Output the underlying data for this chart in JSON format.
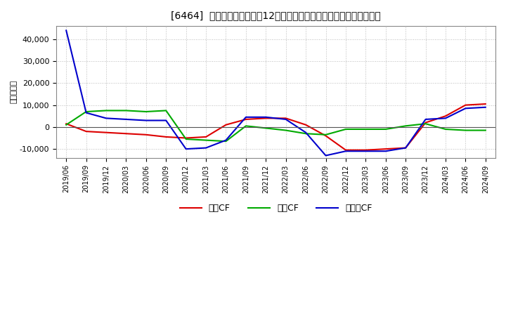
{
  "title": "[6464]  キャッシュフローの12か月移動合計の対前年同期増減額の推移",
  "ylabel": "（百万円）",
  "background_color": "#ffffff",
  "plot_bg_color": "#ffffff",
  "grid_color": "#aaaaaa",
  "x_labels": [
    "2019/06",
    "2019/09",
    "2019/12",
    "2020/03",
    "2020/06",
    "2020/09",
    "2020/12",
    "2021/03",
    "2021/06",
    "2021/09",
    "2021/12",
    "2022/03",
    "2022/06",
    "2022/09",
    "2022/12",
    "2023/03",
    "2023/06",
    "2023/09",
    "2023/12",
    "2024/03",
    "2024/06",
    "2024/09"
  ],
  "operating_cf": [
    1500,
    -2000,
    -2500,
    -3000,
    -3500,
    -4500,
    -5000,
    -4500,
    1000,
    3500,
    4000,
    4000,
    1000,
    -4000,
    -10500,
    -10500,
    -10000,
    -9500,
    2000,
    5000,
    10000,
    10500
  ],
  "investing_cf": [
    1000,
    7000,
    7500,
    7500,
    7000,
    7500,
    -5500,
    -6000,
    -6500,
    500,
    -500,
    -1500,
    -3000,
    -3500,
    -1000,
    -1000,
    -1000,
    500,
    1500,
    -1000,
    -1500,
    -1500
  ],
  "free_cf": [
    44000,
    6500,
    4000,
    3500,
    3000,
    3000,
    -10000,
    -9500,
    -6000,
    4500,
    4500,
    3500,
    -2500,
    -13000,
    -11000,
    -11000,
    -11000,
    -9500,
    3500,
    4000,
    8500,
    9000
  ],
  "operating_color": "#dd0000",
  "investing_color": "#00aa00",
  "free_color": "#0000cc",
  "ylim_min": -14000,
  "ylim_max": 46000,
  "legend_labels": [
    "営業CF",
    "投資CF",
    "フリーCF"
  ]
}
